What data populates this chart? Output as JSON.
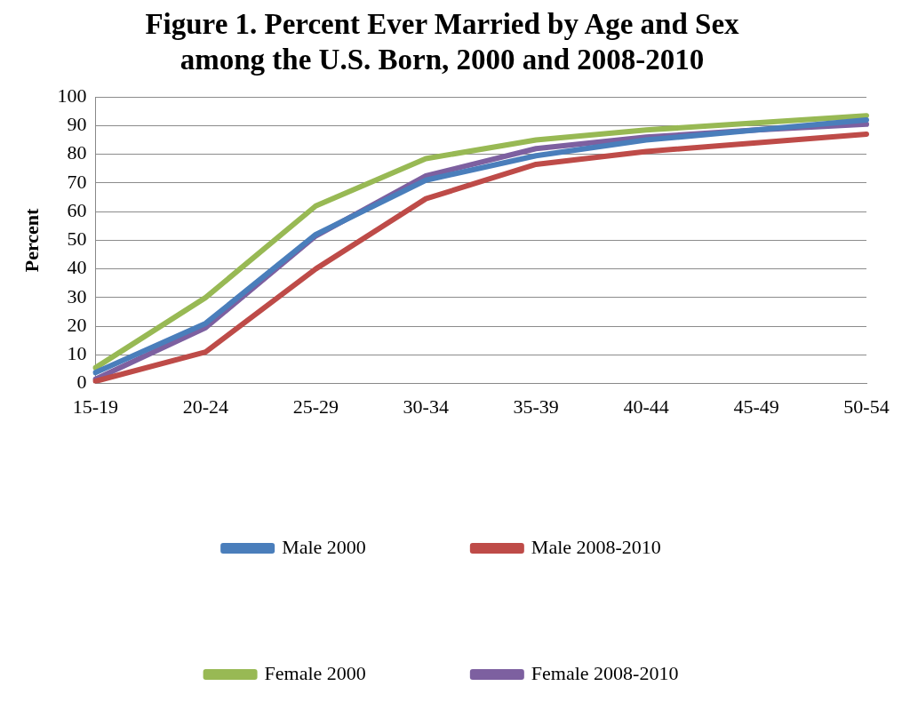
{
  "chart_data": {
    "type": "line",
    "title": [
      "Figure 1. Percent Ever Married by Age and Sex",
      "among the U.S. Born, 2000 and 2008-2010"
    ],
    "ylabel": "Percent",
    "categories": [
      "15-19",
      "20-24",
      "25-29",
      "30-34",
      "35-39",
      "40-44",
      "45-49",
      "50-54"
    ],
    "series": [
      {
        "name": "Male 2000",
        "color": "#4a7ebb",
        "values": [
          3.8,
          21,
          52,
          71,
          79.5,
          85,
          88.5,
          92
        ]
      },
      {
        "name": "Male 2008-2010",
        "color": "#be4b48",
        "values": [
          0.8,
          11,
          40,
          64.5,
          76.5,
          81,
          84,
          87
        ]
      },
      {
        "name": "Female 2000",
        "color": "#98b954",
        "values": [
          5.5,
          30,
          62,
          78.5,
          85,
          88.5,
          91,
          93.5
        ]
      },
      {
        "name": "Female 2008-2010",
        "color": "#7d60a0",
        "values": [
          1.5,
          19.5,
          51.5,
          72.5,
          82,
          86,
          88.5,
          90.5
        ]
      }
    ],
    "ylim": [
      0,
      100
    ],
    "yticks": [
      0,
      10,
      20,
      30,
      40,
      50,
      60,
      70,
      80,
      90,
      100
    ],
    "grid": "y",
    "legend": "bottom",
    "marker": "none",
    "line_style": "solid"
  }
}
